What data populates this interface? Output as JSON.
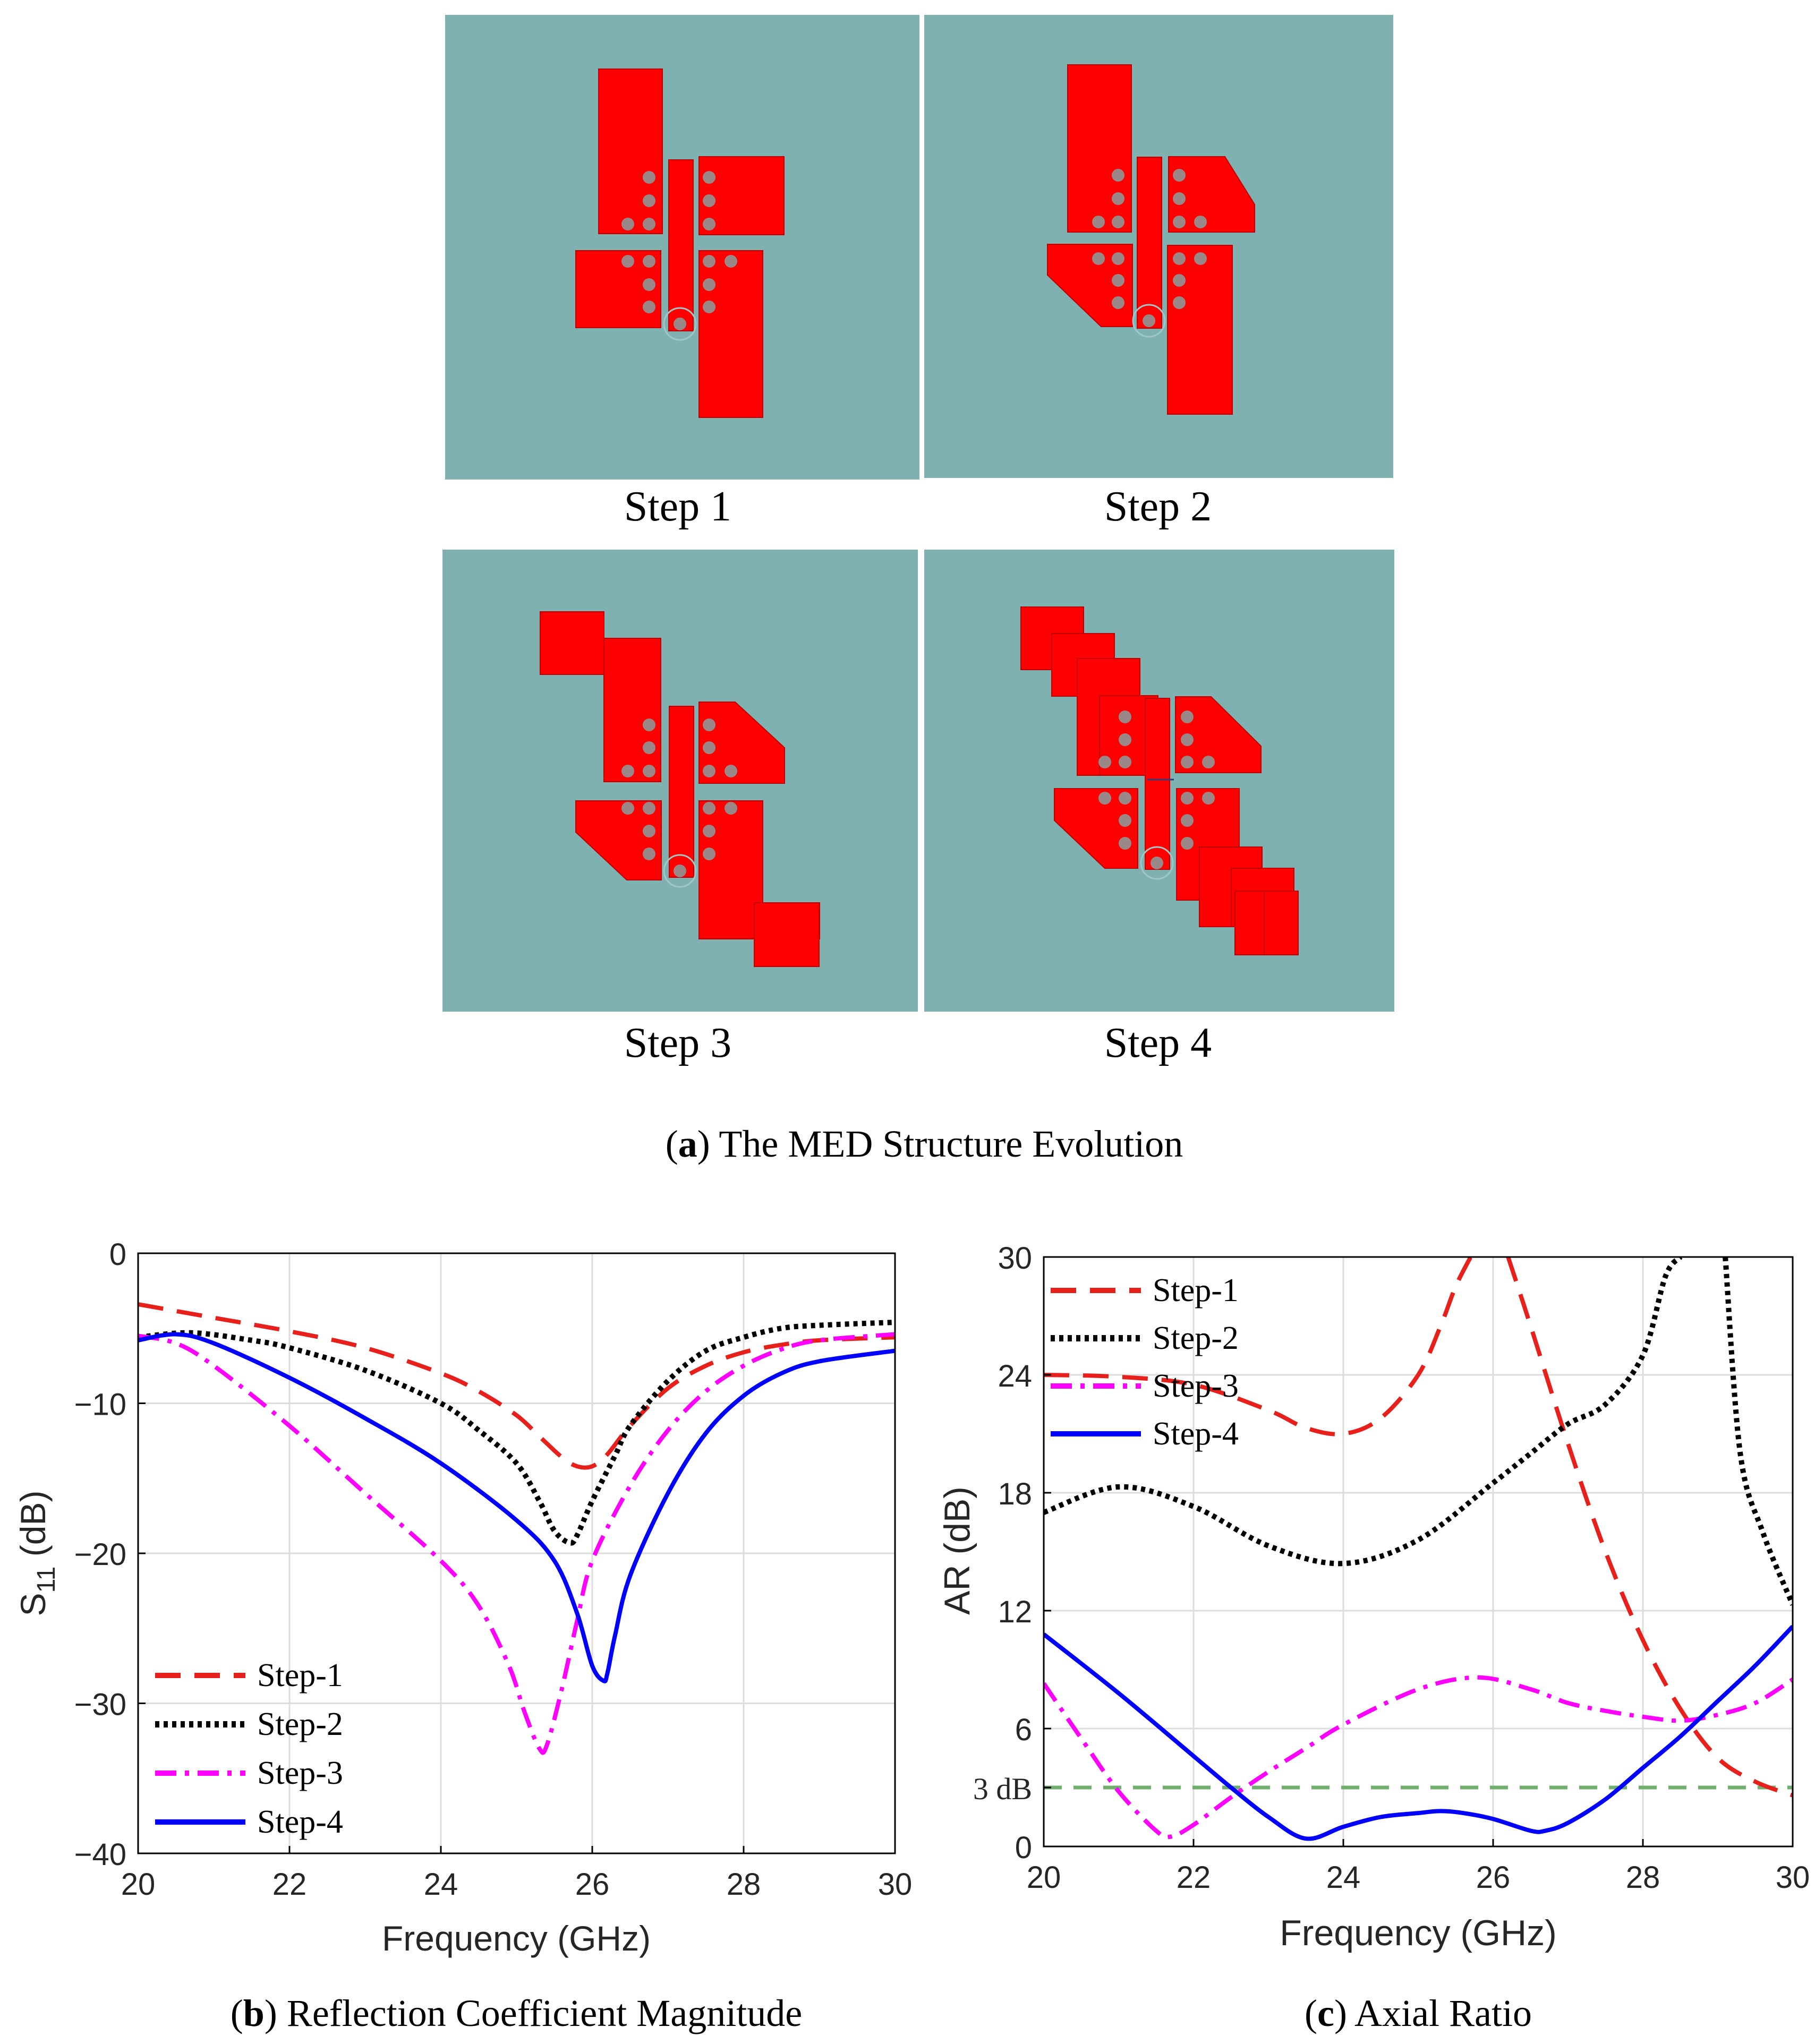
{
  "panel_a": {
    "step_labels": [
      "Step 1",
      "Step 2",
      "Step 3",
      "Step 4"
    ],
    "caption_letter": "a",
    "caption_text": " The MED Structure Evolution",
    "colors": {
      "substrate": "#7fb1b1",
      "patch": "#ff0000",
      "via": "#9a8787"
    }
  },
  "captions": {
    "b_letter": "b",
    "b_text": " Reflection Coefficient Magnitude",
    "c_letter": "c",
    "c_text": " Axial Ratio"
  },
  "chart_data": [
    {
      "type": "line",
      "id": "s11",
      "xlabel": "Frequency (GHz)",
      "ylabel_main": "S",
      "ylabel_sub": "11",
      "ylabel_unit": " (dB)",
      "xlim": [
        20,
        30
      ],
      "ylim": [
        -40,
        0
      ],
      "xticks": [
        20,
        22,
        24,
        26,
        28,
        30
      ],
      "xtick_labels": [
        "20",
        "22",
        "24",
        "26",
        "28",
        "30"
      ],
      "yticks": [
        -40,
        -30,
        -20,
        -10,
        0
      ],
      "ytick_labels": [
        "−40",
        "−30",
        "−20",
        "−10",
        "0"
      ],
      "grid": true,
      "legend_position": "bottom-left",
      "series": [
        {
          "name": "Step-1",
          "color": "#e8201c",
          "dash": "dashed",
          "x": [
            20,
            21,
            22,
            23,
            24,
            24.5,
            25,
            25.3,
            25.6,
            25.8,
            26,
            26.2,
            26.5,
            27,
            27.5,
            28,
            28.5,
            29,
            30
          ],
          "y": [
            -3.4,
            -4.3,
            -5.2,
            -6.3,
            -8.0,
            -9.2,
            -10.8,
            -12.2,
            -13.6,
            -14.2,
            -14.2,
            -13.4,
            -11.5,
            -9.0,
            -7.5,
            -6.6,
            -6.1,
            -5.8,
            -5.6
          ]
        },
        {
          "name": "Step-2",
          "color": "#000000",
          "dash": "dotted",
          "x": [
            20,
            20.7,
            21.5,
            22,
            23,
            24,
            24.5,
            25,
            25.3,
            25.5,
            25.7,
            25.8,
            26,
            26.3,
            26.5,
            27,
            27.5,
            28,
            28.5,
            29,
            30
          ],
          "y": [
            -5.6,
            -5.3,
            -5.8,
            -6.3,
            -7.8,
            -10.0,
            -11.8,
            -14.0,
            -16.5,
            -18.5,
            -19.3,
            -18.8,
            -16.5,
            -13.5,
            -11.5,
            -8.5,
            -6.5,
            -5.6,
            -5.0,
            -4.8,
            -4.6
          ]
        },
        {
          "name": "Step-3",
          "color": "#ff00ff",
          "dash": "dashdot",
          "x": [
            20,
            20.5,
            21,
            22,
            23,
            24,
            24.5,
            24.9,
            25.1,
            25.3,
            25.4,
            25.6,
            25.8,
            26,
            26.5,
            27,
            27.5,
            28,
            28.5,
            29,
            30
          ],
          "y": [
            -5.5,
            -6.0,
            -7.5,
            -11.5,
            -16.0,
            -20.5,
            -23.5,
            -27.5,
            -30.5,
            -33.0,
            -32.8,
            -29.0,
            -24.5,
            -20.5,
            -15.5,
            -11.8,
            -9.2,
            -7.5,
            -6.4,
            -5.8,
            -5.4
          ]
        },
        {
          "name": "Step-4",
          "color": "#0000ff",
          "dash": "solid",
          "x": [
            20,
            20.5,
            21,
            22,
            23,
            24,
            25,
            25.5,
            25.8,
            26,
            26.15,
            26.2,
            26.3,
            26.5,
            27,
            27.5,
            28,
            28.5,
            29,
            30
          ],
          "y": [
            -5.8,
            -5.4,
            -6.0,
            -8.3,
            -11.0,
            -14.0,
            -17.8,
            -20.5,
            -24.0,
            -27.5,
            -28.5,
            -28.0,
            -25.5,
            -21.5,
            -16.0,
            -12.0,
            -9.5,
            -8.0,
            -7.2,
            -6.5
          ]
        }
      ]
    },
    {
      "type": "line",
      "id": "ar",
      "xlabel": "Frequency (GHz)",
      "ylabel": "AR (dB)",
      "xlim": [
        20,
        30
      ],
      "ylim": [
        0,
        30
      ],
      "xticks": [
        20,
        22,
        24,
        26,
        28,
        30
      ],
      "xtick_labels": [
        "20",
        "22",
        "24",
        "26",
        "28",
        "30"
      ],
      "yticks": [
        0,
        3,
        6,
        12,
        18,
        24,
        30
      ],
      "ytick_labels": [
        "0",
        "3 dB",
        "6",
        "12",
        "18",
        "24",
        "30"
      ],
      "grid": true,
      "legend_position": "top-left",
      "reference_line": {
        "y": 3,
        "color": "#6fb06f"
      },
      "series": [
        {
          "name": "Step-1",
          "color": "#e8201c",
          "dash": "dashed",
          "x": [
            20,
            21,
            22,
            23,
            23.5,
            24,
            24.5,
            25,
            25.3,
            25.5,
            25.7,
            26,
            26.2,
            26.5,
            27,
            27.5,
            28,
            28.5,
            29,
            29.5,
            30
          ],
          "y": [
            24,
            23.9,
            23.5,
            22.2,
            21.3,
            21.0,
            21.8,
            24.0,
            26.5,
            28.5,
            30,
            null,
            30,
            26.5,
            20.5,
            15.0,
            10.5,
            7.0,
            4.5,
            3.3,
            2.6
          ]
        },
        {
          "name": "Step-2",
          "color": "#000000",
          "dash": "dotted",
          "x": [
            20,
            21,
            22,
            23,
            24,
            25,
            26,
            26.5,
            27,
            27.5,
            28,
            28.3,
            28.5,
            28.7,
            29.1,
            29.3,
            29.6,
            30
          ],
          "y": [
            17.0,
            18.3,
            17.3,
            15.3,
            14.4,
            15.6,
            18.5,
            20.0,
            21.5,
            22.5,
            25,
            29,
            30,
            null,
            30,
            20.0,
            16.0,
            12.3
          ]
        },
        {
          "name": "Step-3",
          "color": "#ff00ff",
          "dash": "dashdot",
          "x": [
            20,
            20.5,
            21,
            21.5,
            21.7,
            22,
            22.5,
            23,
            23.5,
            24,
            25,
            25.8,
            26.5,
            27,
            27.5,
            28,
            28.5,
            29,
            29.5,
            30
          ],
          "y": [
            8.3,
            5.5,
            2.8,
            0.8,
            0.5,
            1.1,
            2.5,
            3.8,
            5.0,
            6.2,
            8.0,
            8.6,
            8.0,
            7.3,
            6.9,
            6.6,
            6.4,
            6.7,
            7.3,
            8.5
          ]
        },
        {
          "name": "Step-4",
          "color": "#0000ff",
          "dash": "solid",
          "x": [
            20,
            21,
            22,
            22.5,
            23,
            23.5,
            24,
            24.5,
            25,
            25.3,
            25.6,
            26,
            26.5,
            26.7,
            27,
            27.5,
            28,
            28.5,
            29,
            29.5,
            30
          ],
          "y": [
            10.8,
            7.8,
            4.6,
            3.0,
            1.5,
            0.4,
            1.0,
            1.5,
            1.7,
            1.8,
            1.7,
            1.4,
            0.8,
            0.8,
            1.2,
            2.4,
            4.0,
            5.6,
            7.4,
            9.2,
            11.2
          ]
        }
      ]
    }
  ]
}
